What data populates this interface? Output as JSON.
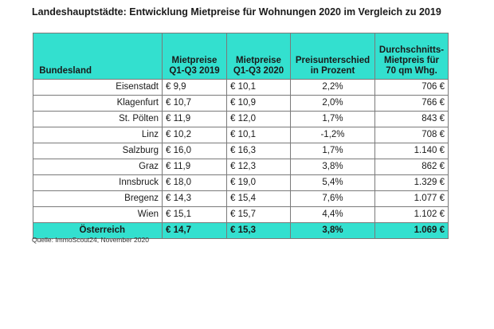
{
  "title": "Landeshauptstädte: Entwicklung Mietpreise für Wohnungen 2020 im Vergleich zu 2019",
  "table": {
    "headers": {
      "state": "Bundesland",
      "price2019": "Mietpreise Q1-Q3 2019",
      "price2020": "Mietpreise Q1-Q3 2020",
      "diff": "Preisunterschied in Prozent",
      "avg": "Durchschnitts-Mietpreis für 70 qm Whg."
    },
    "rows": [
      {
        "city": "Eisenstadt",
        "p2019": "€ 9,9",
        "p2020": "€ 10,1",
        "diff": "2,2%",
        "avg": "706 €"
      },
      {
        "city": "Klagenfurt",
        "p2019": "€ 10,7",
        "p2020": "€ 10,9",
        "diff": "2,0%",
        "avg": "766 €"
      },
      {
        "city": "St. Pölten",
        "p2019": "€ 11,9",
        "p2020": "€ 12,0",
        "diff": "1,7%",
        "avg": "843 €"
      },
      {
        "city": "Linz",
        "p2019": "€ 10,2",
        "p2020": "€ 10,1",
        "diff": "-1,2%",
        "avg": "708 €"
      },
      {
        "city": "Salzburg",
        "p2019": "€ 16,0",
        "p2020": "€ 16,3",
        "diff": "1,7%",
        "avg": "1.140 €"
      },
      {
        "city": "Graz",
        "p2019": "€ 11,9",
        "p2020": "€ 12,3",
        "diff": "3,8%",
        "avg": "862 €"
      },
      {
        "city": "Innsbruck",
        "p2019": "€ 18,0",
        "p2020": "€ 19,0",
        "diff": "5,4%",
        "avg": "1.329 €"
      },
      {
        "city": "Bregenz",
        "p2019": "€ 14,3",
        "p2020": "€ 15,4",
        "diff": "7,6%",
        "avg": "1.077 €"
      },
      {
        "city": "Wien",
        "p2019": "€ 15,1",
        "p2020": "€ 15,7",
        "diff": "4,4%",
        "avg": "1.102 €"
      }
    ],
    "total": {
      "city": "Österreich",
      "p2019": "€ 14,7",
      "p2020": "€ 15,3",
      "diff": "3,8%",
      "avg": "1.069 €"
    }
  },
  "source": "Quelle: ImmoScout24, November 2020",
  "colors": {
    "header_fill": "#33e0cf",
    "border": "#7a7a7a"
  }
}
